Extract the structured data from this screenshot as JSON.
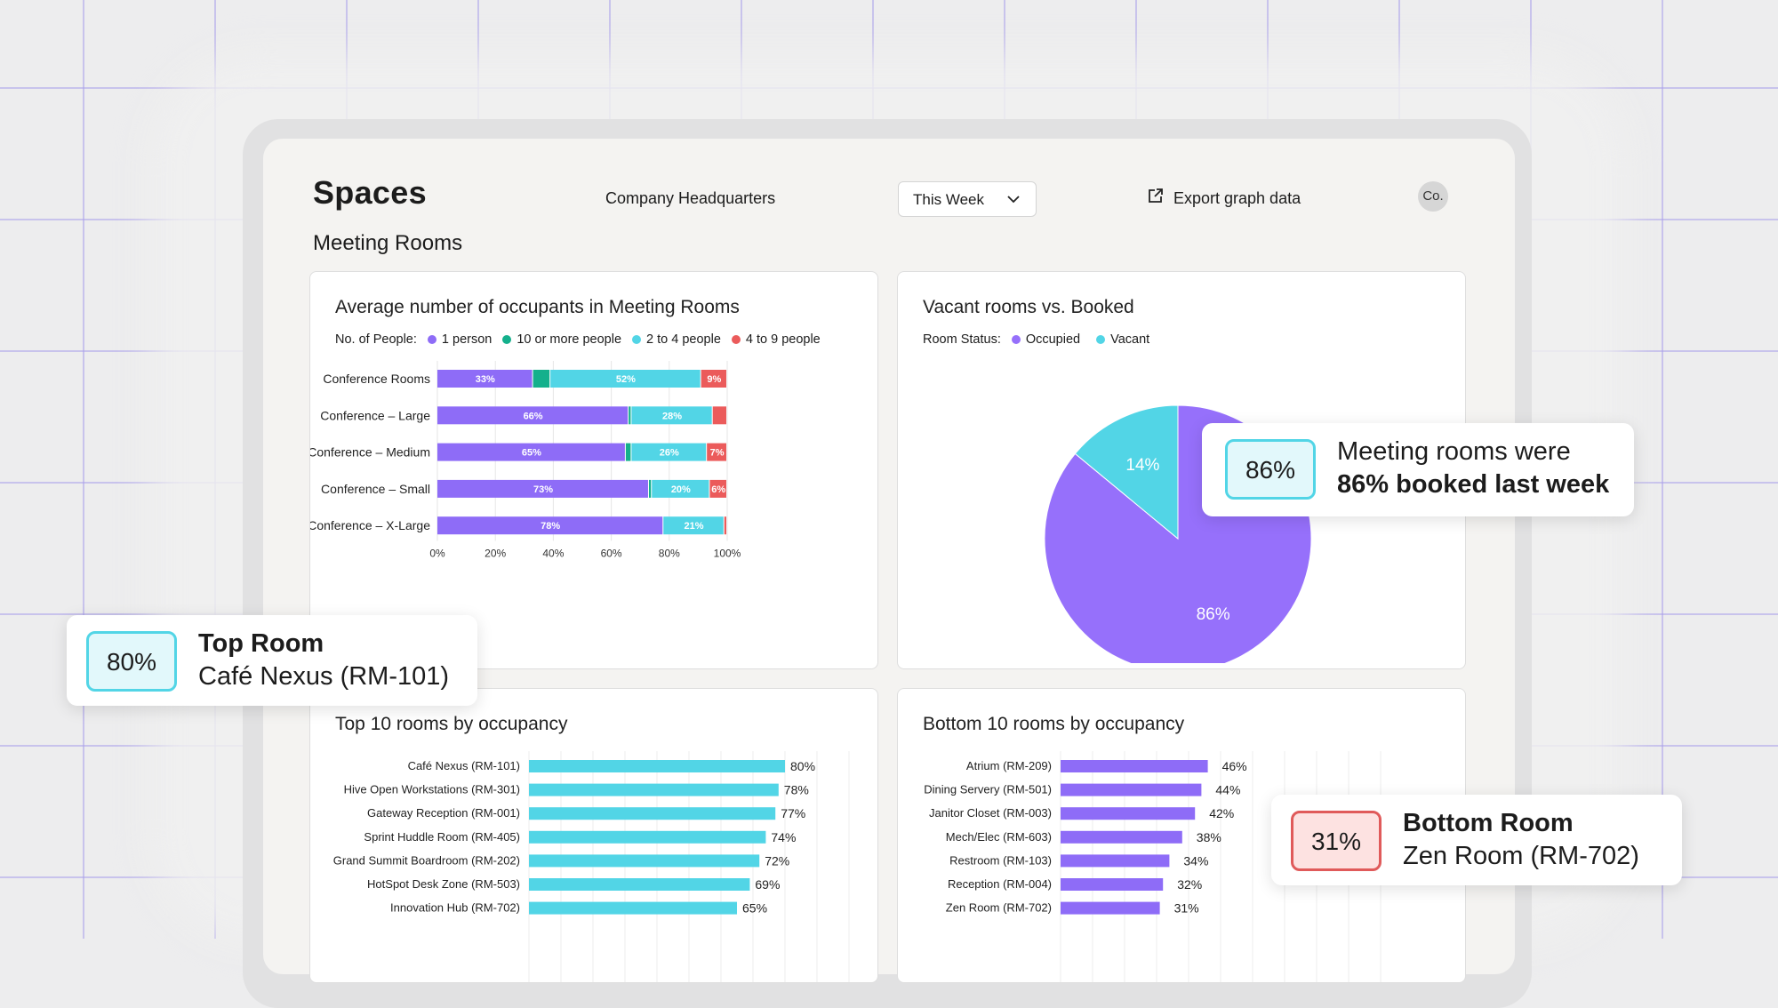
{
  "app": {
    "title": "Spaces",
    "location": "Company Headquarters",
    "range_select": "This Week",
    "export_label": "Export graph data",
    "avatar": "Co.",
    "section_title": "Meeting Rooms"
  },
  "colors": {
    "purple": "#8e6cf7",
    "green": "#14b08c",
    "cyan": "#52d5e6",
    "red": "#eb5b5b",
    "pie_purple": "#9670fb",
    "pie_cyan": "#52d5e6"
  },
  "chart_data": [
    {
      "type": "bar",
      "title": "Average number of occupants in Meeting Rooms",
      "legend_title": "No. of People:",
      "stacked": true,
      "orientation": "horizontal",
      "categories": [
        "Conference Rooms",
        "Conference – Large",
        "Conference – Medium",
        "Conference – Small",
        "Conference – X-Large"
      ],
      "series": [
        {
          "name": "1 person",
          "color": "#8e6cf7",
          "values": [
            33,
            66,
            65,
            73,
            78
          ]
        },
        {
          "name": "10 or more people",
          "color": "#14b08c",
          "values": [
            6,
            1,
            2,
            1,
            0
          ]
        },
        {
          "name": "2 to 4 people",
          "color": "#52d5e6",
          "values": [
            52,
            28,
            26,
            20,
            21
          ]
        },
        {
          "name": "4 to 9 people",
          "color": "#eb5b5b",
          "values": [
            9,
            5,
            7,
            6,
            1
          ]
        }
      ],
      "labels": [
        [
          "33%",
          "",
          "52%",
          "9%"
        ],
        [
          "66%",
          "",
          "28%",
          ""
        ],
        [
          "65%",
          "",
          "26%",
          "7%"
        ],
        [
          "73%",
          "",
          "20%",
          "6%"
        ],
        [
          "78%",
          "",
          "21%",
          ""
        ]
      ],
      "xticks": [
        "0%",
        "20%",
        "40%",
        "60%",
        "80%",
        "100%"
      ],
      "xlim": [
        0,
        100
      ],
      "grid": true
    },
    {
      "type": "pie",
      "title": "Vacant rooms vs. Booked",
      "legend_title": "Room Status:",
      "slices": [
        {
          "name": "Occupied",
          "value": 86,
          "label": "86%",
          "color": "#9670fb"
        },
        {
          "name": "Vacant",
          "value": 14,
          "label": "14%",
          "color": "#52d5e6"
        }
      ]
    },
    {
      "type": "bar",
      "title": "Top 10 rooms by occupancy",
      "orientation": "horizontal",
      "color": "#52d5e6",
      "categories": [
        "Café Nexus (RM-101)",
        "Hive Open Workstations (RM-301)",
        "Gateway Reception (RM-001)",
        "Sprint Huddle Room (RM-405)",
        "Grand Summit Boardroom (RM-202)",
        "HotSpot Desk Zone (RM-503)",
        "Innovation Hub (RM-702)"
      ],
      "values": [
        80,
        78,
        77,
        74,
        72,
        69,
        65
      ],
      "labels": [
        "80%",
        "78%",
        "77%",
        "74%",
        "72%",
        "69%",
        "65%"
      ],
      "xlim": [
        0,
        100
      ],
      "grid": true
    },
    {
      "type": "bar",
      "title": "Bottom 10 rooms by occupancy",
      "orientation": "horizontal",
      "color": "#8e6cf7",
      "categories": [
        "Atrium (RM-209)",
        "Dining Servery (RM-501)",
        "Janitor Closet (RM-003)",
        "Mech/Elec (RM-603)",
        "Restroom (RM-103)",
        "Reception (RM-004)",
        "Zen Room (RM-702)"
      ],
      "values": [
        46,
        44,
        42,
        38,
        34,
        32,
        31
      ],
      "labels": [
        "46%",
        "44%",
        "42%",
        "38%",
        "34%",
        "32%",
        "31%"
      ],
      "xlim": [
        0,
        100
      ],
      "grid": true
    }
  ],
  "callouts": {
    "booked": {
      "pct": "86%",
      "line1": "Meeting rooms were",
      "line2": "86% booked last week"
    },
    "top": {
      "pct": "80%",
      "line1": "Top Room",
      "line2": "Café Nexus (RM-101)"
    },
    "bottom": {
      "pct": "31%",
      "line1": "Bottom Room",
      "line2": "Zen Room (RM-702)"
    }
  }
}
